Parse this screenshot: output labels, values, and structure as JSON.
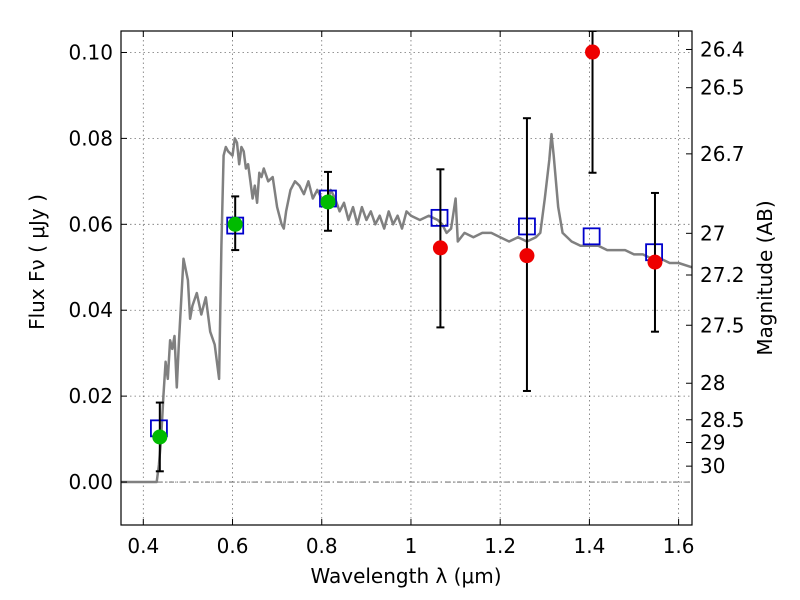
{
  "chart_data": {
    "type": "scatter",
    "xlabel": "Wavelength  λ (μm)",
    "ylabel": "Flux  Fν ( μJy )",
    "ylabel2": "Magnitude (AB)",
    "xlim": [
      0.35,
      1.63
    ],
    "ylim": [
      -0.01,
      0.105
    ],
    "grid": true,
    "x_ticks": [
      {
        "value": 0.4,
        "label": "0.4"
      },
      {
        "value": 0.6,
        "label": "0.6"
      },
      {
        "value": 0.8,
        "label": "0.8"
      },
      {
        "value": 1.0,
        "label": "1"
      },
      {
        "value": 1.2,
        "label": "1.2"
      },
      {
        "value": 1.4,
        "label": "1.4"
      },
      {
        "value": 1.6,
        "label": "1.6"
      }
    ],
    "y_ticks": [
      {
        "value": 0.0,
        "label": "0.00"
      },
      {
        "value": 0.02,
        "label": "0.02"
      },
      {
        "value": 0.04,
        "label": "0.04"
      },
      {
        "value": 0.06,
        "label": "0.06"
      },
      {
        "value": 0.08,
        "label": "0.08"
      },
      {
        "value": 0.1,
        "label": "0.10"
      }
    ],
    "magnitude_ticks": [
      {
        "label": "26.4",
        "flux": 0.1007
      },
      {
        "label": "26.5",
        "flux": 0.0918
      },
      {
        "label": "26.7",
        "flux": 0.0764
      },
      {
        "label": "27",
        "flux": 0.0579
      },
      {
        "label": "27.2",
        "flux": 0.0482
      },
      {
        "label": "27.5",
        "flux": 0.0365
      },
      {
        "label": "28",
        "flux": 0.023
      },
      {
        "label": "28.5",
        "flux": 0.0145
      },
      {
        "label": "29",
        "flux": 0.0092
      },
      {
        "label": "30",
        "flux": 0.0037
      }
    ],
    "series": [
      {
        "kind": "line",
        "color": "#808080",
        "points": [
          [
            0.35,
            0.0
          ],
          [
            0.43,
            0.0
          ],
          [
            0.435,
            0.004
          ],
          [
            0.44,
            0.01
          ],
          [
            0.445,
            0.02
          ],
          [
            0.45,
            0.028
          ],
          [
            0.455,
            0.024
          ],
          [
            0.46,
            0.033
          ],
          [
            0.465,
            0.031
          ],
          [
            0.47,
            0.034
          ],
          [
            0.475,
            0.022
          ],
          [
            0.48,
            0.033
          ],
          [
            0.49,
            0.052
          ],
          [
            0.5,
            0.047
          ],
          [
            0.505,
            0.038
          ],
          [
            0.51,
            0.041
          ],
          [
            0.52,
            0.044
          ],
          [
            0.53,
            0.039
          ],
          [
            0.54,
            0.043
          ],
          [
            0.55,
            0.035
          ],
          [
            0.56,
            0.032
          ],
          [
            0.57,
            0.024
          ],
          [
            0.575,
            0.055
          ],
          [
            0.58,
            0.076
          ],
          [
            0.585,
            0.078
          ],
          [
            0.59,
            0.077
          ],
          [
            0.6,
            0.076
          ],
          [
            0.605,
            0.08
          ],
          [
            0.61,
            0.079
          ],
          [
            0.615,
            0.074
          ],
          [
            0.62,
            0.078
          ],
          [
            0.625,
            0.077
          ],
          [
            0.63,
            0.073
          ],
          [
            0.635,
            0.074
          ],
          [
            0.64,
            0.07
          ],
          [
            0.645,
            0.066
          ],
          [
            0.65,
            0.069
          ],
          [
            0.655,
            0.065
          ],
          [
            0.66,
            0.072
          ],
          [
            0.665,
            0.071
          ],
          [
            0.67,
            0.073
          ],
          [
            0.68,
            0.07
          ],
          [
            0.69,
            0.071
          ],
          [
            0.7,
            0.064
          ],
          [
            0.71,
            0.06
          ],
          [
            0.715,
            0.059
          ],
          [
            0.72,
            0.063
          ],
          [
            0.73,
            0.068
          ],
          [
            0.74,
            0.07
          ],
          [
            0.75,
            0.069
          ],
          [
            0.76,
            0.067
          ],
          [
            0.77,
            0.07
          ],
          [
            0.78,
            0.066
          ],
          [
            0.79,
            0.068
          ],
          [
            0.8,
            0.066
          ],
          [
            0.81,
            0.064
          ],
          [
            0.82,
            0.068
          ],
          [
            0.83,
            0.066
          ],
          [
            0.84,
            0.063
          ],
          [
            0.85,
            0.065
          ],
          [
            0.86,
            0.061
          ],
          [
            0.87,
            0.064
          ],
          [
            0.88,
            0.06
          ],
          [
            0.89,
            0.064
          ],
          [
            0.9,
            0.061
          ],
          [
            0.91,
            0.063
          ],
          [
            0.92,
            0.06
          ],
          [
            0.93,
            0.062
          ],
          [
            0.94,
            0.059
          ],
          [
            0.95,
            0.063
          ],
          [
            0.96,
            0.06
          ],
          [
            0.97,
            0.062
          ],
          [
            0.98,
            0.059
          ],
          [
            0.99,
            0.063
          ],
          [
            1.0,
            0.062
          ],
          [
            1.02,
            0.061
          ],
          [
            1.04,
            0.062
          ],
          [
            1.06,
            0.061
          ],
          [
            1.07,
            0.06
          ],
          [
            1.08,
            0.058
          ],
          [
            1.09,
            0.059
          ],
          [
            1.1,
            0.066
          ],
          [
            1.105,
            0.056
          ],
          [
            1.12,
            0.058
          ],
          [
            1.14,
            0.057
          ],
          [
            1.16,
            0.058
          ],
          [
            1.18,
            0.058
          ],
          [
            1.2,
            0.057
          ],
          [
            1.22,
            0.056
          ],
          [
            1.24,
            0.057
          ],
          [
            1.26,
            0.056
          ],
          [
            1.28,
            0.057
          ],
          [
            1.29,
            0.058
          ],
          [
            1.3,
            0.066
          ],
          [
            1.31,
            0.075
          ],
          [
            1.315,
            0.081
          ],
          [
            1.32,
            0.076
          ],
          [
            1.33,
            0.064
          ],
          [
            1.34,
            0.058
          ],
          [
            1.36,
            0.056
          ],
          [
            1.38,
            0.055
          ],
          [
            1.4,
            0.055
          ],
          [
            1.42,
            0.055
          ],
          [
            1.44,
            0.054
          ],
          [
            1.46,
            0.054
          ],
          [
            1.48,
            0.054
          ],
          [
            1.5,
            0.053
          ],
          [
            1.52,
            0.053
          ],
          [
            1.54,
            0.052
          ],
          [
            1.56,
            0.052
          ],
          [
            1.58,
            0.051
          ],
          [
            1.6,
            0.051
          ],
          [
            1.63,
            0.05
          ]
        ]
      },
      {
        "kind": "open-square",
        "color": "#0000cc",
        "points": [
          [
            0.435,
            0.0125
          ],
          [
            0.606,
            0.0597
          ],
          [
            0.814,
            0.066
          ],
          [
            1.064,
            0.0615
          ],
          [
            1.26,
            0.0595
          ],
          [
            1.405,
            0.0572
          ],
          [
            1.545,
            0.0535
          ]
        ]
      },
      {
        "kind": "errorbar",
        "color": "#000000",
        "points": [
          [
            0.437,
            0.0025,
            0.0185
          ],
          [
            0.606,
            0.054,
            0.0665
          ],
          [
            0.814,
            0.0585,
            0.0722
          ],
          [
            1.066,
            0.036,
            0.0728
          ],
          [
            1.26,
            0.0212,
            0.0847
          ],
          [
            1.407,
            0.072,
            0.105
          ],
          [
            1.547,
            0.035,
            0.0673
          ]
        ]
      },
      {
        "kind": "filled-circle",
        "color": "#00bb00",
        "points": [
          [
            0.437,
            0.0105
          ],
          [
            0.606,
            0.06
          ],
          [
            0.814,
            0.0652
          ]
        ]
      },
      {
        "kind": "filled-circle",
        "color": "#ee0000",
        "points": [
          [
            1.066,
            0.0545
          ],
          [
            1.26,
            0.0527
          ],
          [
            1.407,
            0.1001
          ],
          [
            1.547,
            0.0512
          ]
        ]
      }
    ]
  }
}
